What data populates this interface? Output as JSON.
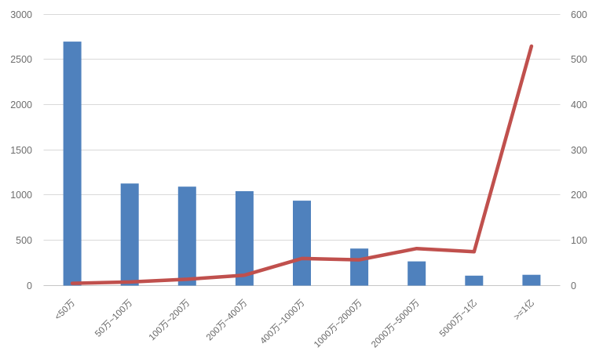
{
  "chart_data": {
    "type": "bar",
    "subtype": "bar-line-combo",
    "title": "",
    "legend": "none",
    "grid": true,
    "categories": [
      "<50万",
      "50万~100万",
      "100万~200万",
      "200万~400万",
      "400万~1000万",
      "1000万~2000万",
      "2000万~5000万",
      "5000万~1亿",
      ">=1亿"
    ],
    "series": [
      {
        "name": "bars",
        "type": "bar",
        "axis": "left",
        "color": "#4F81BD",
        "values": [
          2700,
          1130,
          1095,
          1045,
          940,
          410,
          268,
          110,
          120
        ]
      },
      {
        "name": "line",
        "type": "line",
        "axis": "right",
        "color": "#C0504D",
        "values": [
          5,
          8,
          14,
          23,
          60,
          57,
          82,
          75,
          530
        ]
      }
    ],
    "left_axis": {
      "min": 0,
      "max": 3000,
      "step": 500,
      "tick_labels": [
        "0",
        "500",
        "1000",
        "1500",
        "2000",
        "2500",
        "3000"
      ]
    },
    "right_axis": {
      "min": 0,
      "max": 600,
      "step": 100,
      "tick_labels": [
        "0",
        "100",
        "200",
        "300",
        "400",
        "500",
        "600"
      ]
    },
    "colors": {
      "background": "#FFFFFF",
      "gridline": "#D9D9D9",
      "axis_line": "#C6C6C6",
      "tick_label": "#6E6E6E",
      "category_label": "#666666"
    }
  }
}
